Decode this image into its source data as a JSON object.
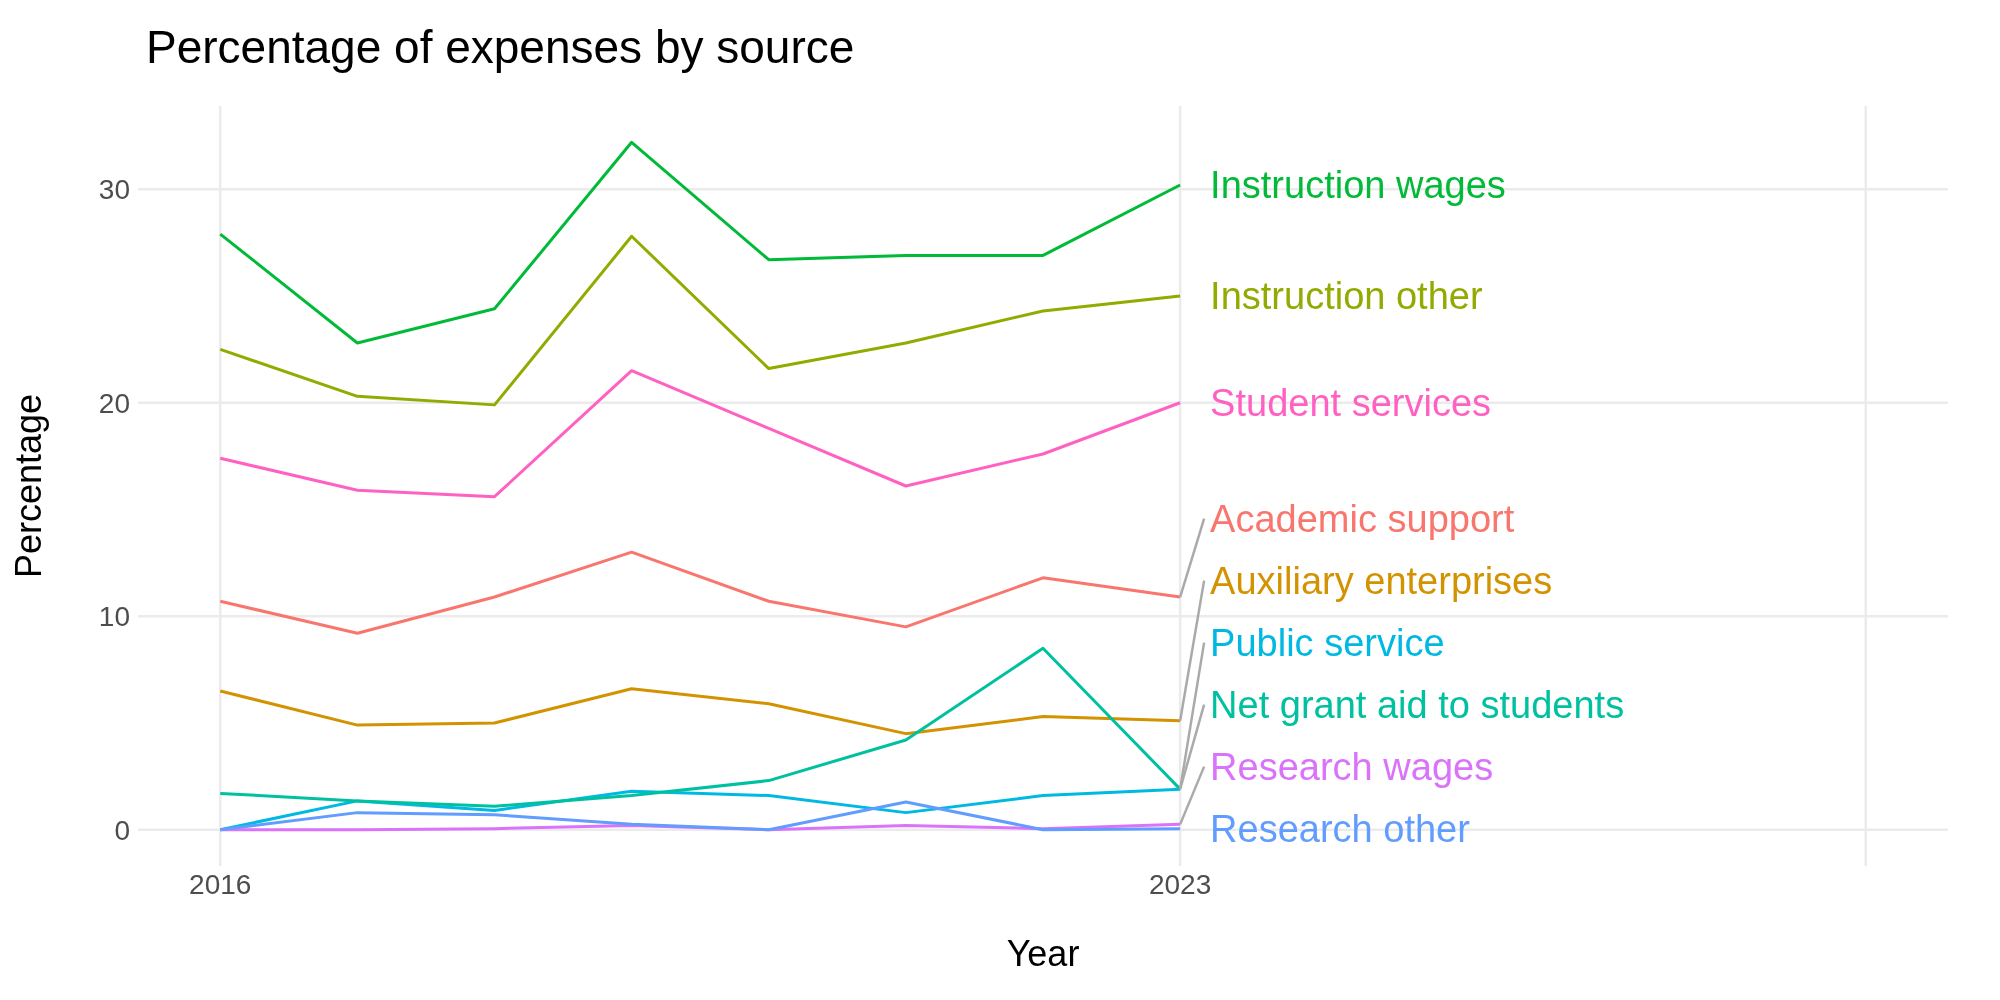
{
  "chart_data": {
    "type": "line",
    "title": "Percentage of expenses by source",
    "xlabel": "Year",
    "ylabel": "Percentage",
    "x": [
      2016,
      2017,
      2018,
      2019,
      2020,
      2021,
      2022,
      2023
    ],
    "xlim": [
      2015.4,
      2028.6
    ],
    "xticks": [
      2016,
      2023,
      {
        "value": 2028,
        "label": null
      }
    ],
    "ylim": [
      -1.7,
      33.9
    ],
    "yticks": [
      0,
      10,
      20,
      30
    ],
    "grid": true,
    "legend": false,
    "marker": "none",
    "line_style": "solid",
    "series": [
      {
        "name": "Instruction wages",
        "color": "#00ba38",
        "values": [
          27.9,
          22.8,
          24.4,
          32.2,
          26.7,
          26.9,
          26.9,
          30.2
        ]
      },
      {
        "name": "Instruction other",
        "color": "#93aa00",
        "values": [
          22.5,
          20.3,
          19.9,
          27.8,
          21.6,
          22.8,
          24.3,
          25.0
        ]
      },
      {
        "name": "Student services",
        "color": "#ff61c3",
        "values": [
          17.4,
          15.9,
          15.6,
          21.5,
          18.8,
          16.1,
          17.6,
          20.0
        ]
      },
      {
        "name": "Academic support",
        "color": "#f8766d",
        "values": [
          10.7,
          9.2,
          10.9,
          13.0,
          10.7,
          9.5,
          11.8,
          10.9
        ]
      },
      {
        "name": "Auxiliary enterprises",
        "color": "#d39200",
        "values": [
          6.5,
          4.9,
          5.0,
          6.6,
          5.9,
          4.5,
          5.3,
          5.1
        ]
      },
      {
        "name": "Public service",
        "color": "#00b9e3",
        "values": [
          0,
          1.35,
          0.9,
          1.8,
          1.6,
          0.8,
          1.6,
          1.9
        ]
      },
      {
        "name": "Net grant aid to students",
        "color": "#00c19f",
        "values": [
          1.7,
          1.35,
          1.1,
          1.6,
          2.3,
          4.2,
          8.5,
          1.9
        ]
      },
      {
        "name": "Research wages",
        "color": "#db72fb",
        "values": [
          0,
          0,
          0.05,
          0.2,
          0,
          0.2,
          0.05,
          0.25
        ]
      },
      {
        "name": "Research other",
        "color": "#619cff",
        "values": [
          0,
          0.8,
          0.7,
          0.25,
          0,
          1.3,
          0,
          0.05
        ]
      }
    ]
  }
}
